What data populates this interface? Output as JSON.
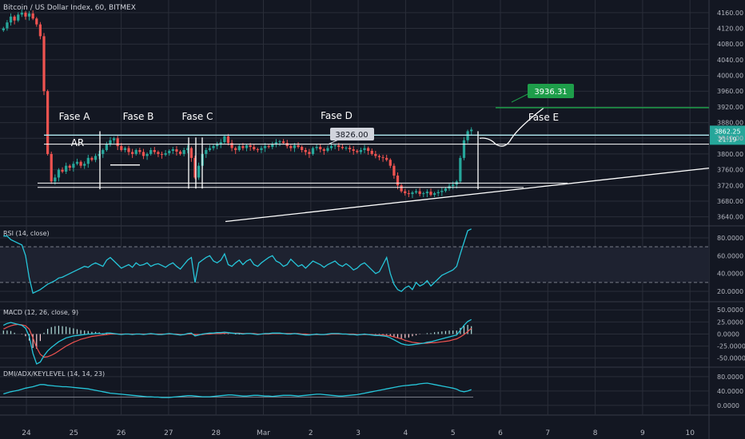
{
  "colors": {
    "background": "#131722",
    "up": "#26a69a",
    "down": "#ef5350",
    "grid": "#2a2e39",
    "axis_text": "#b2b5be",
    "price_tag": "#26a69a",
    "target": "#1e9e4a",
    "indicator_line": "#26c6da",
    "macd_signal": "#ef5350",
    "annotation": "#ffffff"
  },
  "chart_data": {
    "type": "candlestick",
    "title": "Bitcoin / US Dollar Index, 60, BITMEX",
    "price_axis": {
      "ticks": [
        "4160.00",
        "4120.00",
        "4080.00",
        "4040.00",
        "4000.00",
        "3960.00",
        "3920.00",
        "3880.00",
        "3840.00",
        "3800.00",
        "3760.00",
        "3720.00",
        "3680.00",
        "3640.00"
      ],
      "ylim": [
        3625,
        4180
      ]
    },
    "time_axis": {
      "ticks": [
        "24",
        "25",
        "26",
        "27",
        "28",
        "Mar",
        "2",
        "3",
        "4",
        "5",
        "6",
        "7",
        "8",
        "9",
        "10"
      ]
    },
    "price_series_close": [
      4120,
      4135,
      4150,
      4140,
      4155,
      4160,
      4150,
      4158,
      4145,
      4130,
      4100,
      3960,
      3800,
      3730,
      3740,
      3760,
      3755,
      3770,
      3765,
      3775,
      3780,
      3770,
      3775,
      3790,
      3785,
      3795,
      3800,
      3810,
      3825,
      3835,
      3840,
      3820,
      3810,
      3815,
      3805,
      3800,
      3810,
      3805,
      3795,
      3800,
      3810,
      3805,
      3800,
      3798,
      3802,
      3808,
      3812,
      3806,
      3800,
      3810,
      3815,
      3790,
      3740,
      3770,
      3800,
      3810,
      3815,
      3820,
      3825,
      3830,
      3845,
      3828,
      3815,
      3810,
      3820,
      3815,
      3822,
      3818,
      3812,
      3810,
      3815,
      3820,
      3818,
      3825,
      3830,
      3832,
      3828,
      3820,
      3815,
      3822,
      3818,
      3810,
      3805,
      3800,
      3815,
      3818,
      3812,
      3808,
      3815,
      3820,
      3822,
      3818,
      3815,
      3816,
      3812,
      3808,
      3805,
      3810,
      3815,
      3808,
      3800,
      3795,
      3792,
      3790,
      3785,
      3770,
      3745,
      3720,
      3705,
      3700,
      3698,
      3702,
      3705,
      3698,
      3700,
      3704,
      3696,
      3700,
      3703,
      3706,
      3712,
      3718,
      3722,
      3730,
      3790,
      3835,
      3858,
      3862
    ],
    "current_price": "3862.25",
    "current_time_remaining": "21:19",
    "annotations": [
      {
        "type": "label",
        "text": "Fase A"
      },
      {
        "type": "label",
        "text": "Fase B"
      },
      {
        "type": "label",
        "text": "Fase C"
      },
      {
        "type": "label",
        "text": "Fase D"
      },
      {
        "type": "label",
        "text": "Fase E"
      },
      {
        "type": "label",
        "text": "AR"
      },
      {
        "type": "callout",
        "text": "3826.00",
        "value": 3826
      },
      {
        "type": "target",
        "text": "3936.31",
        "value": 3936.31
      }
    ],
    "rsi": {
      "label": "RSI (14, close)",
      "ticks": [
        "80.0000",
        "60.0000",
        "40.0000",
        "20.0000"
      ],
      "ylim": [
        12,
        88
      ],
      "bands": [
        70,
        30
      ],
      "values": [
        82,
        82,
        78,
        76,
        74,
        72,
        60,
        35,
        18,
        20,
        22,
        25,
        28,
        30,
        32,
        35,
        36,
        38,
        40,
        42,
        44,
        46,
        48,
        47,
        50,
        52,
        50,
        48,
        55,
        58,
        54,
        50,
        46,
        48,
        50,
        47,
        52,
        49,
        50,
        52,
        48,
        50,
        51,
        49,
        47,
        50,
        52,
        48,
        45,
        50,
        55,
        58,
        30,
        52,
        55,
        58,
        60,
        54,
        52,
        55,
        62,
        50,
        48,
        52,
        55,
        50,
        54,
        56,
        50,
        48,
        52,
        55,
        58,
        60,
        54,
        52,
        48,
        50,
        56,
        52,
        48,
        50,
        46,
        50,
        54,
        52,
        50,
        47,
        50,
        52,
        54,
        50,
        48,
        51,
        48,
        44,
        46,
        50,
        52,
        48,
        44,
        40,
        42,
        50,
        58,
        40,
        28,
        22,
        20,
        24,
        26,
        22,
        30,
        26,
        28,
        32,
        26,
        30,
        34,
        38,
        40,
        42,
        44,
        48,
        62,
        75,
        88,
        90
      ]
    },
    "macd": {
      "label": "MACD (12, 26, close, 9)",
      "ticks": [
        "50.0000",
        "25.0000",
        "0.0000",
        "-25.0000",
        "-50.0000"
      ],
      "ylim": [
        -62,
        57
      ],
      "macd_values": [
        18,
        22,
        24,
        22,
        20,
        18,
        12,
        -5,
        -40,
        -62,
        -58,
        -45,
        -35,
        -28,
        -22,
        -16,
        -12,
        -8,
        -6,
        -4,
        -3,
        -2,
        -1,
        0,
        0,
        1,
        1,
        0,
        2,
        2,
        1,
        0,
        -1,
        0,
        0,
        -1,
        0,
        0,
        -1,
        0,
        1,
        0,
        -1,
        -1,
        0,
        1,
        0,
        -1,
        -2,
        -1,
        1,
        2,
        -4,
        -2,
        0,
        1,
        2,
        2,
        3,
        3,
        4,
        3,
        2,
        1,
        1,
        0,
        1,
        1,
        0,
        -1,
        0,
        1,
        1,
        2,
        2,
        2,
        1,
        0,
        0,
        1,
        0,
        -1,
        -2,
        -2,
        -1,
        0,
        -1,
        -1,
        0,
        1,
        1,
        1,
        0,
        0,
        -1,
        -1,
        -2,
        -1,
        0,
        -1,
        -2,
        -3,
        -3,
        -4,
        -5,
        -8,
        -12,
        -16,
        -20,
        -22,
        -23,
        -22,
        -21,
        -20,
        -19,
        -17,
        -16,
        -14,
        -12,
        -10,
        -8,
        -6,
        -4,
        -2,
        8,
        18,
        26,
        30
      ],
      "signal_values": [
        10,
        14,
        17,
        19,
        20,
        19,
        17,
        10,
        -8,
        -28,
        -42,
        -48,
        -47,
        -44,
        -40,
        -35,
        -30,
        -25,
        -21,
        -17,
        -14,
        -11,
        -9,
        -7,
        -5,
        -4,
        -3,
        -2,
        -1,
        0,
        0,
        0,
        0,
        0,
        0,
        0,
        0,
        0,
        0,
        0,
        0,
        0,
        0,
        0,
        0,
        0,
        0,
        0,
        -1,
        -1,
        0,
        0,
        -1,
        -1,
        -1,
        0,
        0,
        1,
        1,
        1,
        2,
        2,
        2,
        2,
        2,
        1,
        1,
        1,
        1,
        0,
        0,
        0,
        0,
        1,
        1,
        1,
        1,
        1,
        1,
        1,
        1,
        0,
        0,
        -1,
        -1,
        -1,
        -1,
        -1,
        -1,
        0,
        0,
        0,
        0,
        0,
        0,
        0,
        -1,
        -1,
        -1,
        -1,
        -1,
        -2,
        -2,
        -2,
        -3,
        -4,
        -6,
        -8,
        -10,
        -13,
        -15,
        -17,
        -18,
        -19,
        -19,
        -19,
        -18,
        -18,
        -17,
        -16,
        -15,
        -14,
        -12,
        -10,
        -6,
        -1,
        5,
        12
      ]
    },
    "dmi": {
      "label": "DMI/ADX/KEYLEVEL (14, 14, 23)",
      "ticks": [
        "80.0000",
        "40.0000",
        "0.0000"
      ],
      "ylim": [
        -18,
        93
      ],
      "keylevel": 23,
      "adx_values": [
        32,
        35,
        38,
        40,
        42,
        45,
        48,
        50,
        52,
        55,
        58,
        58,
        56,
        55,
        54,
        53,
        52,
        52,
        51,
        50,
        49,
        48,
        47,
        46,
        44,
        42,
        40,
        38,
        36,
        34,
        33,
        32,
        31,
        30,
        29,
        28,
        27,
        26,
        25,
        24,
        24,
        23,
        23,
        22,
        22,
        22,
        23,
        24,
        25,
        26,
        27,
        27,
        26,
        25,
        24,
        24,
        24,
        25,
        26,
        27,
        28,
        29,
        29,
        28,
        27,
        26,
        26,
        27,
        28,
        28,
        27,
        26,
        26,
        25,
        26,
        27,
        28,
        28,
        28,
        27,
        26,
        27,
        28,
        29,
        30,
        31,
        31,
        30,
        29,
        28,
        27,
        26,
        26,
        27,
        28,
        29,
        30,
        32,
        34,
        36,
        38,
        40,
        42,
        44,
        46,
        48,
        50,
        52,
        54,
        55,
        56,
        57,
        58,
        60,
        61,
        62,
        60,
        58,
        56,
        54,
        52,
        50,
        48,
        45,
        40,
        38,
        40,
        44
      ]
    }
  }
}
